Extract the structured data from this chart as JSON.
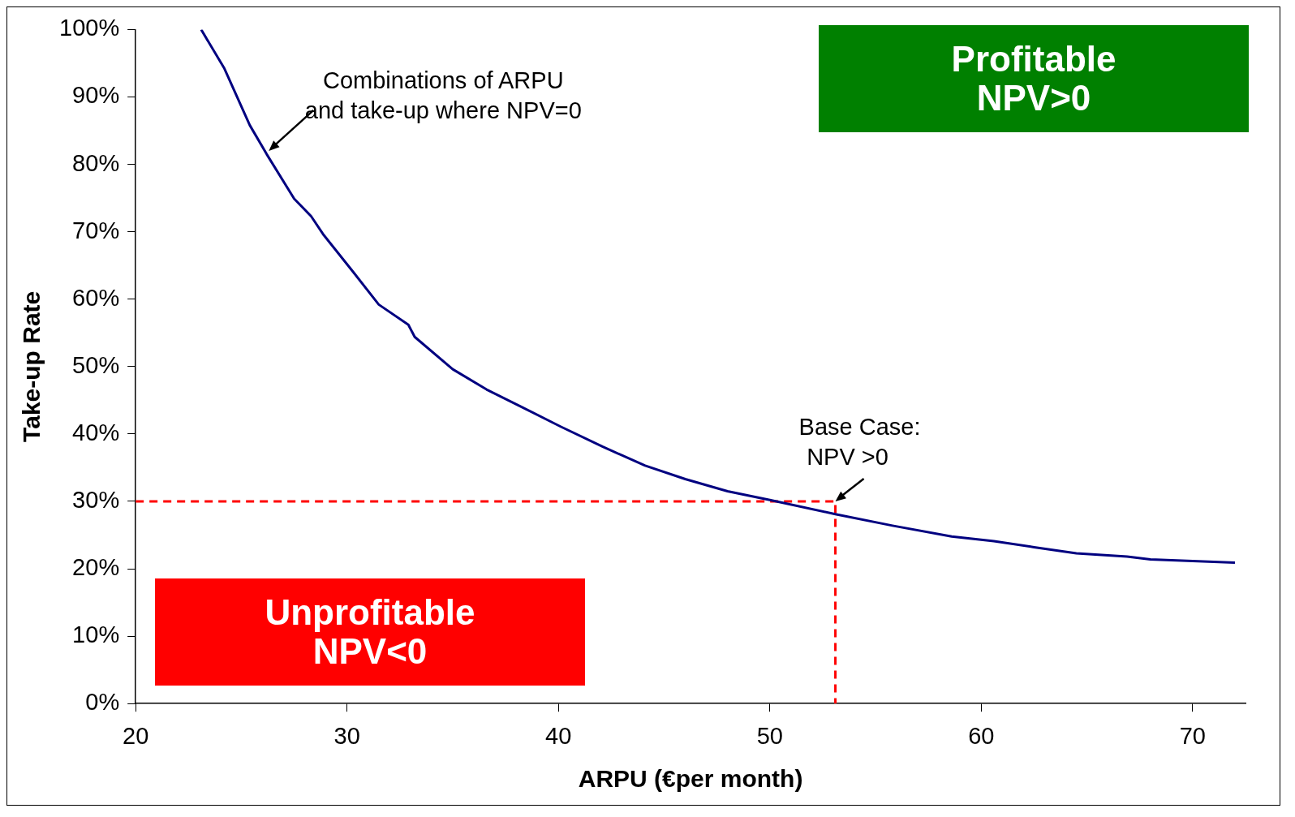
{
  "chart_data": {
    "type": "line",
    "xlabel": "ARPU (€per month)",
    "ylabel": "Take-up Rate",
    "xlim": [
      20,
      72.5
    ],
    "xticks": [
      20,
      30,
      40,
      50,
      60,
      70
    ],
    "ylim": [
      0,
      100
    ],
    "yticks": [
      {
        "value": 0,
        "label": "0%"
      },
      {
        "value": 10,
        "label": "10%"
      },
      {
        "value": 20,
        "label": "20%"
      },
      {
        "value": 30,
        "label": "30%"
      },
      {
        "value": 40,
        "label": "40%"
      },
      {
        "value": 50,
        "label": "50%"
      },
      {
        "value": 60,
        "label": "60%"
      },
      {
        "value": 70,
        "label": "70%"
      },
      {
        "value": 80,
        "label": "80%"
      },
      {
        "value": 90,
        "label": "90%"
      },
      {
        "value": 100,
        "label": "100%"
      }
    ],
    "grid": false,
    "legend": false,
    "marker": "none",
    "series": [
      {
        "color": "#000080",
        "line_style": "solid",
        "x": [
          23.1,
          24.2,
          25.4,
          26.2,
          27.5,
          28.3,
          28.9,
          30.3,
          31.5,
          32.9,
          33.2,
          35.0,
          36.6,
          38.2,
          40.1,
          42.1,
          44.1,
          46.0,
          48.0,
          50.0,
          53.1,
          55.8,
          58.6,
          60.6,
          62.5,
          64.5,
          66.9,
          68.0,
          72.0
        ],
        "values": [
          100,
          94.2,
          85.8,
          81.5,
          74.9,
          72.3,
          69.5,
          64,
          59.2,
          56.2,
          54.4,
          49.6,
          46.6,
          44.1,
          41.1,
          38.1,
          35.3,
          33.3,
          31.5,
          30.2,
          28.1,
          26.4,
          24.8,
          24.1,
          23.2,
          22.3,
          21.8,
          21.4,
          20.9
        ]
      },
      {
        "color": "#ff0000",
        "line_style": "dashed",
        "x": [
          20,
          53.1,
          53.1
        ],
        "values": [
          30,
          30,
          0
        ]
      }
    ],
    "annotations": [
      {
        "text": "Combinations of ARPU and take-up where NPV=0",
        "x": 26.3,
        "y": 82
      },
      {
        "text": "Base Case: NPV >0",
        "x": 53.1,
        "y": 30
      },
      "Profitable NPV>0",
      "Unprofitable NPV<0"
    ]
  }
}
